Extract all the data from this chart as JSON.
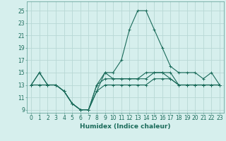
{
  "xlabel": "Humidex (Indice chaleur)",
  "ylabel": "",
  "xlim": [
    -0.5,
    23.5
  ],
  "ylim": [
    8.5,
    26.5
  ],
  "xticks": [
    0,
    1,
    2,
    3,
    4,
    5,
    6,
    7,
    8,
    9,
    10,
    11,
    12,
    13,
    14,
    15,
    16,
    17,
    18,
    19,
    20,
    21,
    22,
    23
  ],
  "yticks": [
    9,
    11,
    13,
    15,
    17,
    19,
    21,
    23,
    25
  ],
  "background_color": "#d6efed",
  "grid_color": "#b8d8d5",
  "line_color": "#1a6b5a",
  "lines": [
    [
      13,
      15,
      13,
      13,
      12,
      10,
      9,
      9,
      12,
      15,
      15,
      17,
      22,
      25,
      25,
      22,
      19,
      16,
      15,
      15,
      15,
      14,
      15,
      13
    ],
    [
      13,
      15,
      13,
      13,
      12,
      10,
      9,
      9,
      13,
      15,
      14,
      14,
      14,
      14,
      15,
      15,
      15,
      15,
      13,
      13,
      13,
      13,
      13,
      13
    ],
    [
      13,
      13,
      13,
      13,
      12,
      10,
      9,
      9,
      13,
      14,
      14,
      14,
      14,
      14,
      14,
      15,
      15,
      14,
      13,
      13,
      13,
      13,
      13,
      13
    ],
    [
      13,
      13,
      13,
      13,
      12,
      10,
      9,
      9,
      12,
      13,
      13,
      13,
      13,
      13,
      13,
      14,
      14,
      14,
      13,
      13,
      13,
      13,
      13,
      13
    ]
  ],
  "tick_fontsize": 5.5,
  "xlabel_fontsize": 6.5,
  "xlabel_fontweight": "bold"
}
